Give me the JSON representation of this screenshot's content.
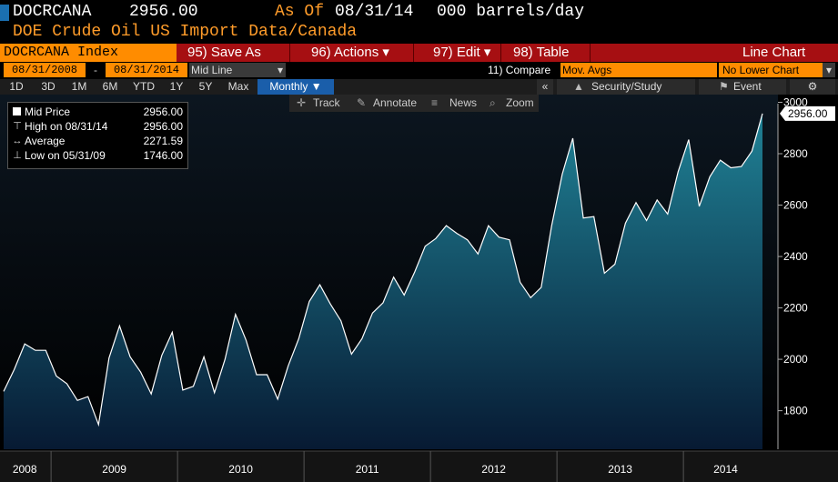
{
  "header": {
    "ticker": "DOCRCANA",
    "price": "2956.00",
    "as_of_label": "As Of",
    "as_of_date": "08/31/14",
    "units": "000 barrels/day",
    "description": "DOE Crude Oil US Import Data/Canada"
  },
  "toolbar": {
    "index_label": "DOCRCANA Index",
    "save_as": "95) Save As",
    "actions": "96) Actions ▾",
    "edit": "97) Edit ▾",
    "table": "98) Table",
    "chart_type": "Line Chart"
  },
  "range": {
    "start": "08/31/2008",
    "dash": "-",
    "end": "08/31/2014",
    "price_type": "Mid Line",
    "compare_label": "11) Compare",
    "mov_avgs": "Mov. Avgs",
    "lower_chart": "No Lower Chart"
  },
  "timeframes": [
    "1D",
    "3D",
    "1M",
    "6M",
    "YTD",
    "1Y",
    "5Y",
    "Max"
  ],
  "period": "Monthly ▼",
  "right_tools": {
    "collapse": "«",
    "security_study": "Security/Study",
    "event": "Event",
    "settings_glyph": "⚙"
  },
  "chart_tools": {
    "track": "Track",
    "annotate": "Annotate",
    "news": "News",
    "zoom": "Zoom"
  },
  "legend": {
    "items": [
      {
        "label": "Mid Price",
        "value": "2956.00"
      },
      {
        "label": "High on 08/31/14",
        "value": "2956.00"
      },
      {
        "label": "Average",
        "value": "2271.59"
      },
      {
        "label": "Low on 05/31/09",
        "value": "1746.00"
      }
    ]
  },
  "colors": {
    "accent_orange": "#ff8c00",
    "toolbar_red": "#a60f12",
    "selected_blue": "#1a5eaa",
    "area_top": "#1f7f93",
    "area_bottom": "#071a33"
  },
  "chart_data": {
    "type": "area",
    "title": "",
    "xlabel": "",
    "ylabel": "",
    "ylim": [
      1650,
      3030
    ],
    "yticks": [
      1800,
      2000,
      2200,
      2400,
      2600,
      2800,
      3000
    ],
    "year_labels": [
      "2008",
      "2009",
      "2010",
      "2011",
      "2012",
      "2013",
      "2014"
    ],
    "last_value_label": "2956.00",
    "x_start": "2008-08",
    "x_end": "2014-08",
    "frequency": "monthly",
    "grid": false,
    "values": [
      1875,
      1960,
      2060,
      2035,
      2035,
      1935,
      1905,
      1840,
      1855,
      1746,
      2005,
      2130,
      2010,
      1950,
      1865,
      2015,
      2105,
      1880,
      1895,
      2010,
      1870,
      2000,
      2175,
      2075,
      1940,
      1940,
      1845,
      1975,
      2080,
      2225,
      2290,
      2215,
      2150,
      2020,
      2080,
      2180,
      2220,
      2320,
      2250,
      2340,
      2440,
      2470,
      2520,
      2490,
      2465,
      2410,
      2520,
      2475,
      2465,
      2300,
      2240,
      2280,
      2520,
      2720,
      2860,
      2550,
      2555,
      2335,
      2370,
      2530,
      2610,
      2540,
      2620,
      2565,
      2730,
      2855,
      2595,
      2710,
      2775,
      2745,
      2750,
      2810,
      2956
    ]
  }
}
